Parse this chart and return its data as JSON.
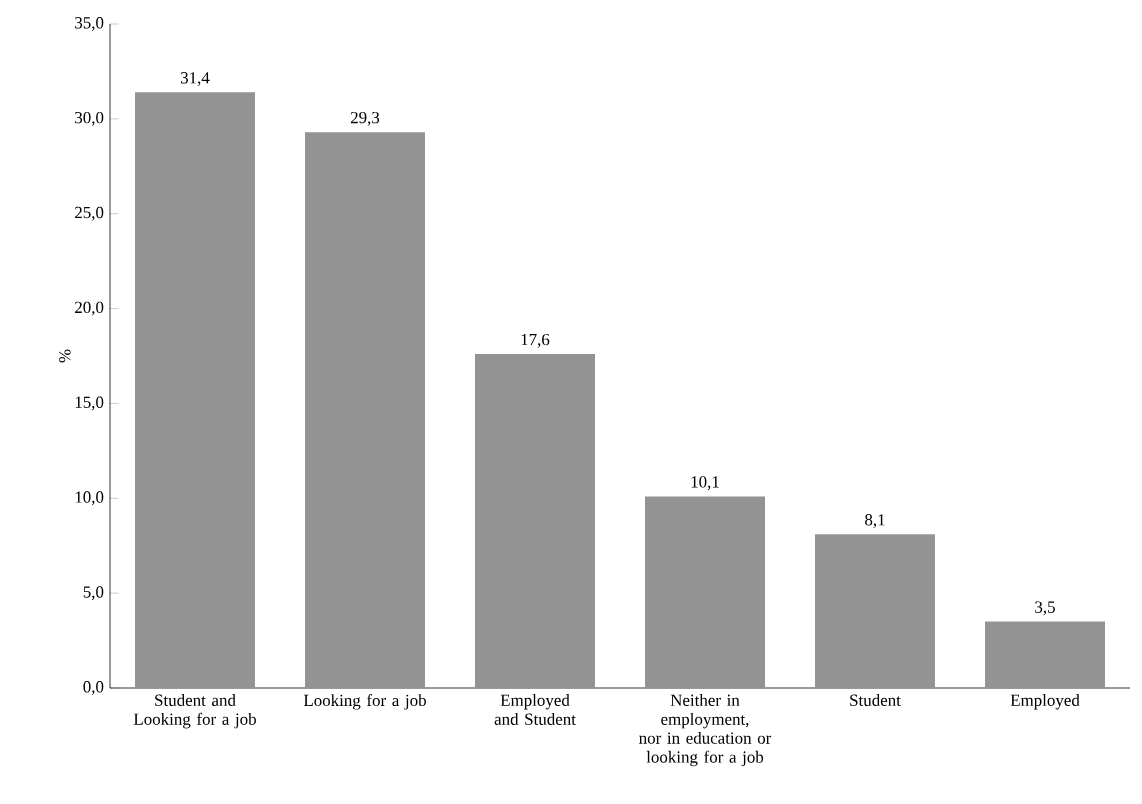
{
  "chart_data": {
    "type": "bar",
    "ylabel": "%",
    "categories": [
      "Student and Looking for a job",
      "Looking for a job",
      "Employed and Student",
      "Neither in employment, nor in education or looking for a job",
      "Student",
      "Employed"
    ],
    "values": [
      31.4,
      29.3,
      17.6,
      10.1,
      8.1,
      3.5
    ],
    "value_labels": [
      "31,4",
      "29,3",
      "17,6",
      "10,1",
      "8,1",
      "3,5"
    ],
    "color": "#939393",
    "ylim": [
      0,
      35
    ],
    "yticks": [
      {
        "value": 0,
        "label": "0,0"
      },
      {
        "value": 5,
        "label": "5,0"
      },
      {
        "value": 10,
        "label": "10,0"
      },
      {
        "value": 15,
        "label": "15,0"
      },
      {
        "value": 20,
        "label": "20,0"
      },
      {
        "value": 25,
        "label": "25,0"
      },
      {
        "value": 30,
        "label": "30,0"
      },
      {
        "value": 35,
        "label": "35,0"
      }
    ],
    "grid": false
  }
}
